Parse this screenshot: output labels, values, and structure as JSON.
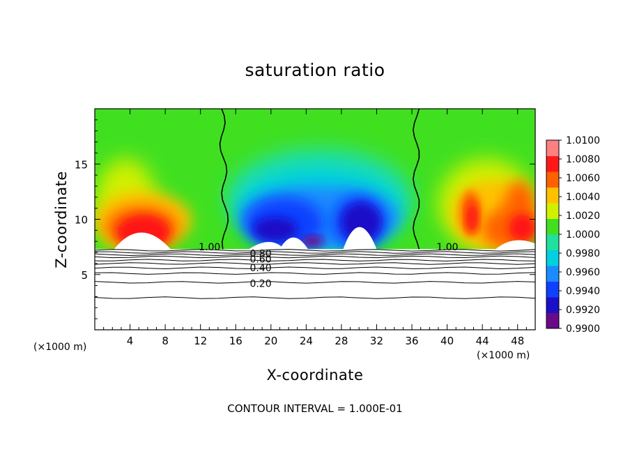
{
  "chart_data": {
    "type": "heatmap",
    "title": "saturation ratio",
    "xlabel": "X-coordinate",
    "ylabel": "Z-coordinate",
    "x_unit": "(×1000 m)",
    "y_unit": "(×1000 m)",
    "footer": "CONTOUR INTERVAL = 1.000E-01",
    "xlim": [
      0,
      50
    ],
    "ylim": [
      0,
      20
    ],
    "x_ticks": [
      4,
      8,
      12,
      16,
      20,
      24,
      28,
      32,
      36,
      40,
      44,
      48
    ],
    "y_ticks": [
      5,
      10,
      15
    ],
    "colorbar": {
      "levels": [
        0.99,
        0.992,
        0.994,
        0.996,
        0.998,
        1.0,
        1.002,
        1.004,
        1.006,
        1.008,
        1.01
      ],
      "labels": [
        "1.0100",
        "1.0080",
        "1.0060",
        "1.0040",
        "1.0020",
        "1.0000",
        "0.9980",
        "0.9960",
        "0.9940",
        "0.9920",
        "0.9900"
      ],
      "colors": [
        "#6a0a8a",
        "#1a10c8",
        "#1040ff",
        "#1a8cff",
        "#00d0e0",
        "#20e0a0",
        "#40e020",
        "#d0f000",
        "#ffc000",
        "#ff6000",
        "#ff1818",
        "#ff8080"
      ]
    },
    "contour_labels": [
      {
        "text": "1.00",
        "x": 11.8,
        "y": 7.5
      },
      {
        "text": "0.80",
        "x": 17.6,
        "y": 6.9
      },
      {
        "text": "0.60",
        "x": 17.6,
        "y": 6.4
      },
      {
        "text": "0.40",
        "x": 17.6,
        "y": 5.6
      },
      {
        "text": "0.20",
        "x": 17.6,
        "y": 4.2
      },
      {
        "text": "1.00",
        "x": 38.8,
        "y": 7.5
      }
    ],
    "boundary_contour_x": [
      14.8,
      36.5
    ],
    "cloud_base_height": 7.3
  }
}
